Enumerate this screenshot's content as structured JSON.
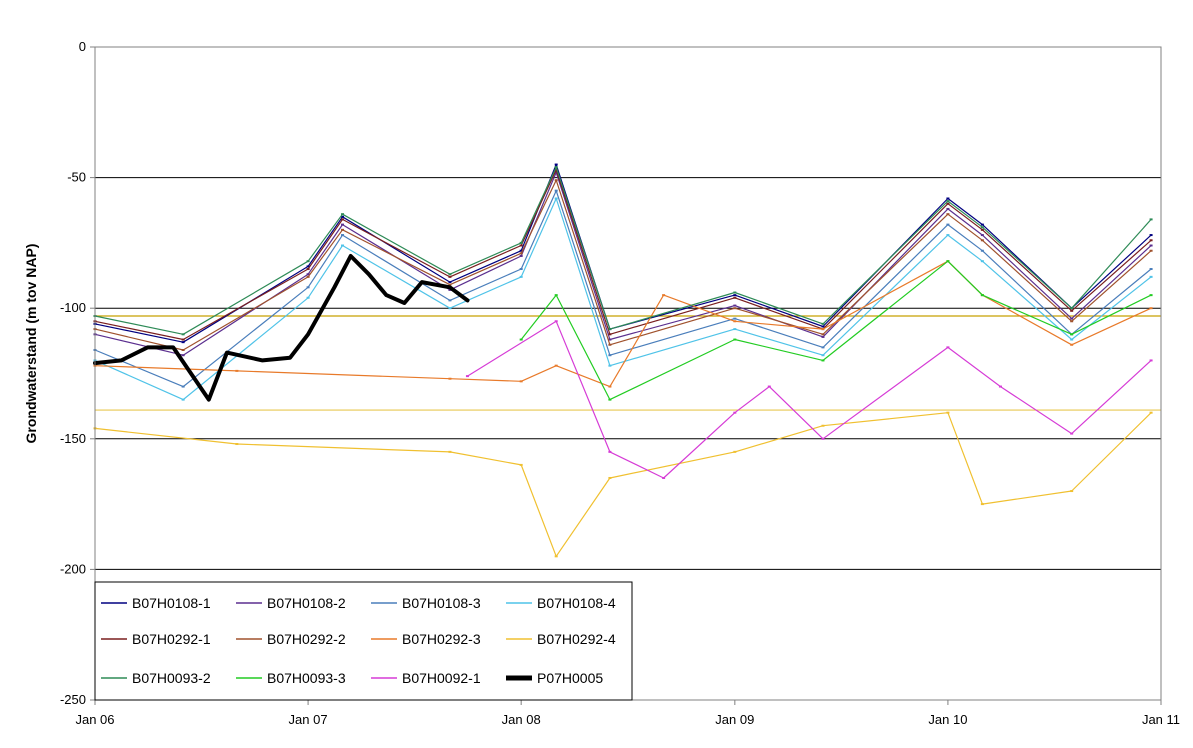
{
  "chart_data": {
    "type": "line",
    "title": "",
    "xlabel": "",
    "ylabel": "Grondwaterstand (m tov NAP)",
    "xlim": [
      "2006-01-01",
      "2011-01-01"
    ],
    "ylim": [
      -250,
      0
    ],
    "yticks": [
      0,
      -50,
      -100,
      -150,
      -200,
      -250
    ],
    "xticks": [
      {
        "date": "2006-01-01",
        "label": "Jan 06"
      },
      {
        "date": "2007-01-01",
        "label": "Jan 07"
      },
      {
        "date": "2008-01-01",
        "label": "Jan 08"
      },
      {
        "date": "2009-01-01",
        "label": "Jan 09"
      },
      {
        "date": "2010-01-01",
        "label": "Jan 10"
      },
      {
        "date": "2011-01-01",
        "label": "Jan 11"
      }
    ],
    "grid": "horizontal",
    "legend_position": "bottom-left",
    "series": [
      {
        "name": "B07H0108-1",
        "color": "#000080",
        "x": [
          "2006-01-01",
          "2006-06-01",
          "2007-01-01",
          "2007-03-01",
          "2007-09-01",
          "2008-01-01",
          "2008-03-01",
          "2008-06-01",
          "2009-01-01",
          "2009-06-01",
          "2010-01-01",
          "2010-03-01",
          "2010-08-01",
          "2010-12-15"
        ],
        "values": [
          -106,
          -113,
          -84,
          -65,
          -90,
          -78,
          -45,
          -108,
          -95,
          -107,
          -58,
          -68,
          -100,
          -72
        ]
      },
      {
        "name": "B07H0108-2",
        "color": "#5b2f8f",
        "x": [
          "2006-01-01",
          "2006-06-01",
          "2007-01-01",
          "2007-03-01",
          "2007-09-01",
          "2008-01-01",
          "2008-03-01",
          "2008-06-01",
          "2009-01-01",
          "2009-06-01",
          "2010-01-01",
          "2010-03-01",
          "2010-08-01",
          "2010-12-15"
        ],
        "values": [
          -110,
          -118,
          -87,
          -68,
          -93,
          -80,
          -48,
          -112,
          -99,
          -111,
          -62,
          -72,
          -104,
          -76
        ]
      },
      {
        "name": "B07H0108-3",
        "color": "#4a7ebb",
        "x": [
          "2006-01-01",
          "2006-06-01",
          "2007-01-01",
          "2007-03-01",
          "2007-09-01",
          "2008-01-01",
          "2008-03-01",
          "2008-06-01",
          "2009-01-01",
          "2009-06-01",
          "2010-01-01",
          "2010-03-01",
          "2010-08-01",
          "2010-12-15"
        ],
        "values": [
          -116,
          -130,
          -92,
          -72,
          -97,
          -85,
          -55,
          -118,
          -104,
          -115,
          -68,
          -78,
          -110,
          -85
        ]
      },
      {
        "name": "B07H0108-4",
        "color": "#4fc3e8",
        "x": [
          "2006-01-01",
          "2006-06-01",
          "2007-01-01",
          "2007-03-01",
          "2007-09-01",
          "2008-01-01",
          "2008-03-01",
          "2008-06-01",
          "2009-01-01",
          "2009-06-01",
          "2010-01-01",
          "2010-03-01",
          "2010-08-01",
          "2010-12-15"
        ],
        "values": [
          -120,
          -135,
          -96,
          -76,
          -100,
          -88,
          -58,
          -122,
          -108,
          -118,
          -72,
          -82,
          -112,
          -88
        ]
      },
      {
        "name": "B07H0292-1",
        "color": "#7a1f1f",
        "x": [
          "2006-01-01",
          "2006-06-01",
          "2007-01-01",
          "2007-03-01",
          "2007-09-01",
          "2008-01-01",
          "2008-03-01",
          "2008-06-01",
          "2009-01-01",
          "2009-06-01",
          "2010-01-01",
          "2010-03-01",
          "2010-08-01",
          "2010-12-15"
        ],
        "values": [
          -105,
          -112,
          -85,
          -66,
          -88,
          -76,
          -47,
          -110,
          -96,
          -108,
          -60,
          -70,
          -101,
          -74
        ]
      },
      {
        "name": "B07H0292-2",
        "color": "#a0522d",
        "x": [
          "2006-01-01",
          "2006-06-01",
          "2007-01-01",
          "2007-03-01",
          "2007-09-01",
          "2008-01-01",
          "2008-03-01",
          "2008-06-01",
          "2009-01-01",
          "2009-06-01",
          "2010-01-01",
          "2010-03-01",
          "2010-08-01",
          "2010-12-15"
        ],
        "values": [
          -108,
          -116,
          -88,
          -70,
          -91,
          -79,
          -51,
          -114,
          -100,
          -110,
          -64,
          -74,
          -105,
          -78
        ]
      },
      {
        "name": "B07H0292-3",
        "color": "#e87a2a",
        "x": [
          "2006-01-01",
          "2006-09-01",
          "2007-09-01",
          "2008-01-01",
          "2008-03-01",
          "2008-06-01",
          "2008-09-01",
          "2009-01-01",
          "2009-06-01",
          "2010-01-01",
          "2010-03-01",
          "2010-08-01",
          "2010-12-15"
        ],
        "values": [
          -122,
          -124,
          -127,
          -128,
          -122,
          -130,
          -95,
          -105,
          -108,
          -82,
          -95,
          -114,
          -100
        ]
      },
      {
        "name": "B07H0292-4",
        "color": "#f0c030",
        "x": [
          "2006-01-01",
          "2006-09-01",
          "2007-09-01",
          "2008-01-01",
          "2008-03-01",
          "2008-06-01",
          "2009-01-01",
          "2009-06-01",
          "2010-01-01",
          "2010-03-01",
          "2010-08-01",
          "2010-12-15"
        ],
        "values": [
          -146,
          -152,
          -155,
          -160,
          -195,
          -165,
          -155,
          -145,
          -140,
          -175,
          -170,
          -140
        ]
      },
      {
        "name": "B07H0093-2",
        "color": "#2e8b57",
        "x": [
          "2006-01-01",
          "2006-06-01",
          "2007-01-01",
          "2007-03-01",
          "2007-09-01",
          "2008-01-01",
          "2008-03-01",
          "2008-06-01",
          "2009-01-01",
          "2009-06-01",
          "2010-01-01",
          "2010-03-01",
          "2010-08-01",
          "2010-12-15"
        ],
        "values": [
          -103,
          -110,
          -82,
          -64,
          -87,
          -75,
          -46,
          -108,
          -94,
          -106,
          -59,
          -69,
          -100,
          -66
        ]
      },
      {
        "name": "B07H0093-3",
        "color": "#22cc22",
        "x": [
          "2008-01-01",
          "2008-03-01",
          "2008-06-01",
          "2009-01-01",
          "2009-06-01",
          "2010-01-01",
          "2010-03-01",
          "2010-08-01",
          "2010-12-15"
        ],
        "values": [
          -112,
          -95,
          -135,
          -112,
          -120,
          -82,
          -95,
          -110,
          -95
        ]
      },
      {
        "name": "B07H0092-1",
        "color": "#d63cd6",
        "x": [
          "2007-10-01",
          "2008-03-01",
          "2008-06-01",
          "2008-09-01",
          "2009-01-01",
          "2009-03-01",
          "2009-06-01",
          "2010-01-01",
          "2010-04-01",
          "2010-08-01",
          "2010-12-15"
        ],
        "values": [
          -126,
          -105,
          -155,
          -165,
          -140,
          -130,
          -150,
          -115,
          -130,
          -148,
          -120
        ]
      },
      {
        "name": "P07H0005",
        "color": "#000000",
        "x": [
          "2006-01-01",
          "2006-02-15",
          "2006-04-01",
          "2006-05-15",
          "2006-07-15",
          "2006-08-15",
          "2006-10-15",
          "2006-12-01",
          "2007-01-01",
          "2007-02-15",
          "2007-03-15",
          "2007-04-15",
          "2007-05-15",
          "2007-06-15",
          "2007-07-15",
          "2007-09-01",
          "2007-10-01"
        ],
        "values": [
          -121,
          -120,
          -115,
          -115,
          -135,
          -117,
          -120,
          -119,
          -110,
          -92,
          -80,
          -87,
          -95,
          -98,
          -90,
          -92,
          -97
        ]
      }
    ],
    "reference_lines": [
      {
        "y": -103,
        "color": "#c8a000"
      },
      {
        "y": -139,
        "color": "#e8c850"
      }
    ]
  }
}
